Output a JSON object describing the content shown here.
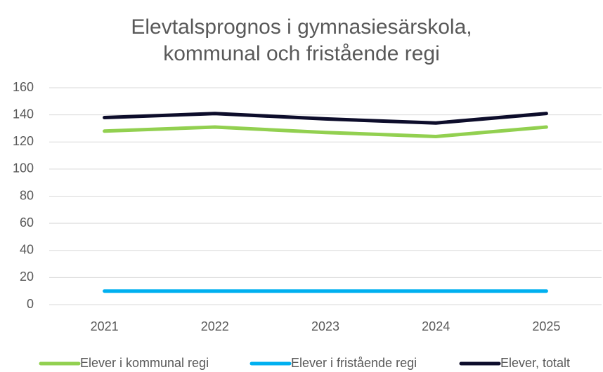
{
  "chart_data": {
    "type": "line",
    "title": [
      "Elevtalsprognos i gymnasiesärskola,",
      "kommunal och fristående regi"
    ],
    "categories": [
      "2021",
      "2022",
      "2023",
      "2024",
      "2025"
    ],
    "series": [
      {
        "name": "Elever i kommunal regi",
        "color": "#92d050",
        "values": [
          128,
          131,
          127,
          124,
          131
        ]
      },
      {
        "name": "Elever i fristående regi",
        "color": "#00b0f0",
        "values": [
          10,
          10,
          10,
          10,
          10
        ]
      },
      {
        "name": "Elever, totalt",
        "color": "#0d0d2b",
        "values": [
          138,
          141,
          137,
          134,
          141
        ]
      }
    ],
    "ylim": [
      0,
      160
    ],
    "yticks": [
      0,
      20,
      40,
      60,
      80,
      100,
      120,
      140,
      160
    ],
    "grid": true
  }
}
